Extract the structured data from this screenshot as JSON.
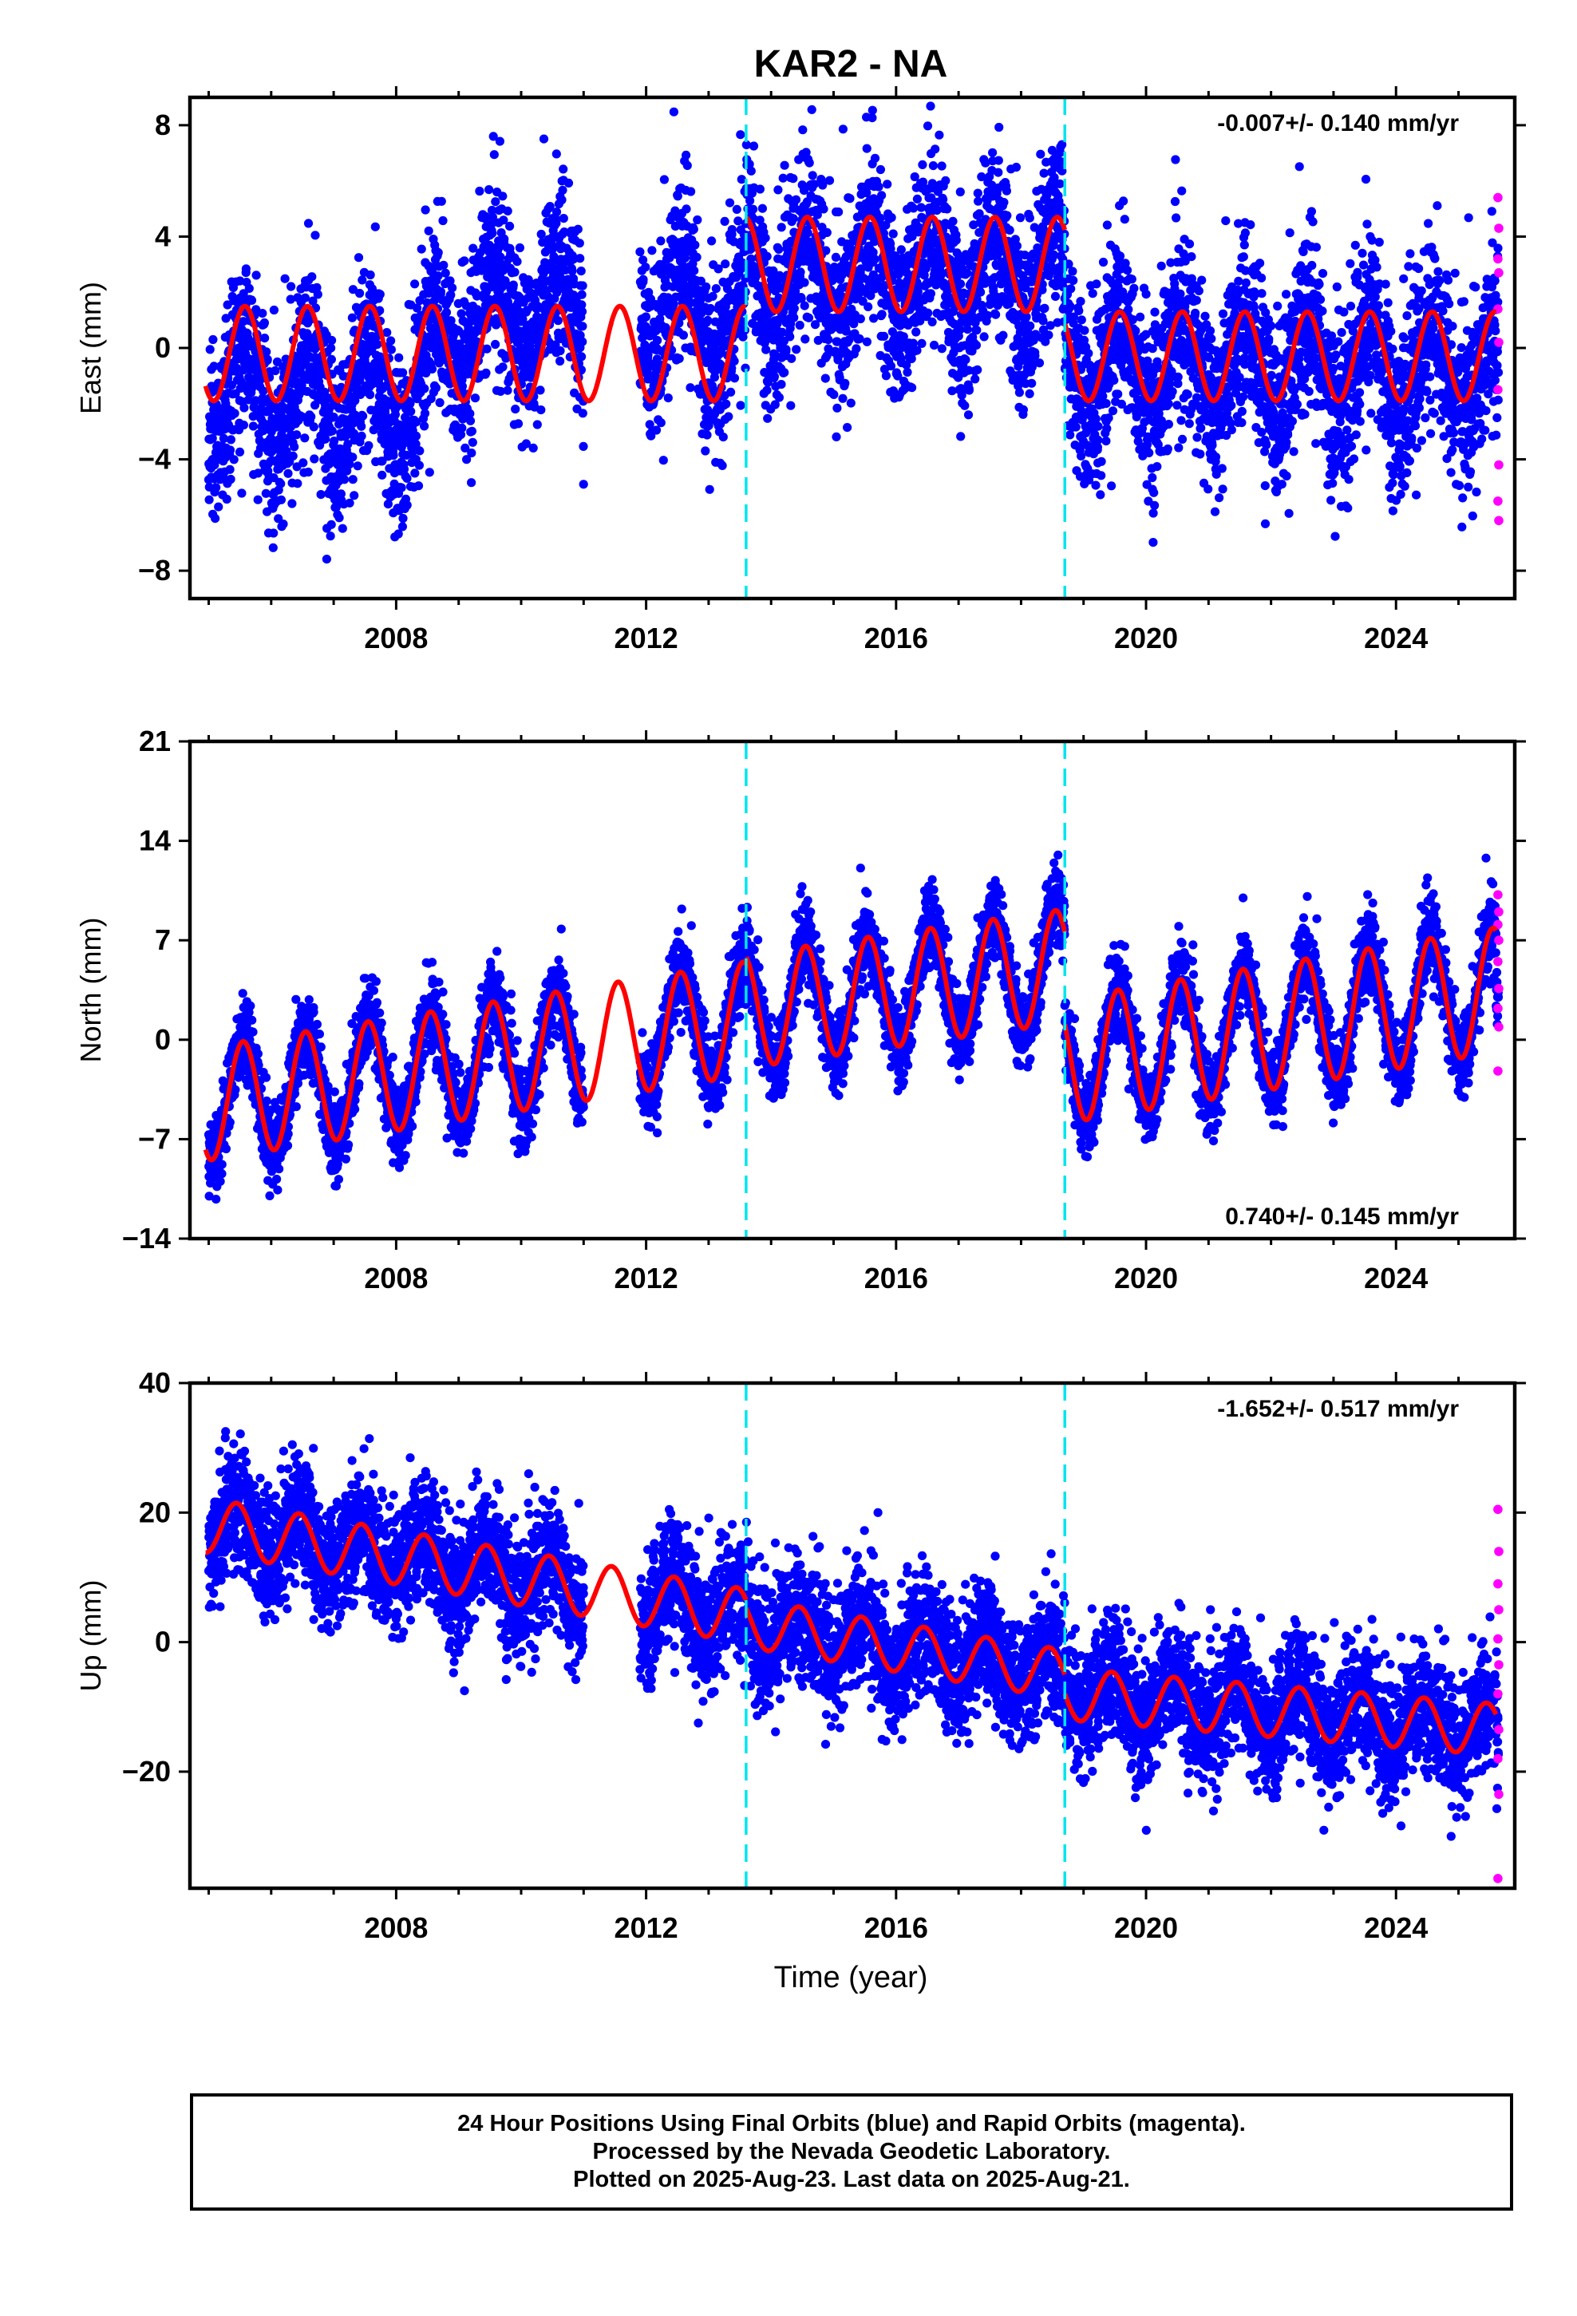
{
  "title": "KAR2 - NA",
  "xlabel": "Time (year)",
  "colors": {
    "final": "#0000ff",
    "rapid": "#ff00ff",
    "model": "#ff0000",
    "steps": "#00e5ee"
  },
  "footer": [
    "24 Hour Positions Using Final Orbits (blue) and Rapid Orbits (magenta).",
    "Processed by the Nevada Geodetic Laboratory.",
    "Plotted on 2025-Aug-23. Last data on 2025-Aug-21."
  ],
  "chart_data": [
    {
      "type": "scatter",
      "ylabel": "East (mm)",
      "rate_text": "-0.007+/- 0.140 mm/yr",
      "xlim": [
        2004.7,
        2025.9
      ],
      "ylim": [
        -9,
        9
      ],
      "xticks": [
        2008,
        2012,
        2016,
        2020,
        2024
      ],
      "yticks": [
        -8,
        -4,
        0,
        4,
        8
      ],
      "steps": [
        2013.6,
        2018.7
      ],
      "data_start": 2005.0,
      "data_end": 2025.64,
      "gaps": [
        [
          2011.0,
          2011.9
        ]
      ],
      "segments": [
        {
          "x": [
            2005.0,
            2008.0,
            2009.2,
            2010.8,
            2012.0,
            2013.6
          ],
          "y": [
            -1.5,
            -2.2,
            1.2,
            1.5,
            1.5,
            0.8
          ]
        },
        {
          "x": [
            2013.6,
            2016.0,
            2018.7
          ],
          "y": [
            2.6,
            2.5,
            2.6
          ]
        },
        {
          "x": [
            2018.7,
            2021.0,
            2025.6
          ],
          "y": [
            -0.6,
            -0.6,
            -0.8
          ]
        }
      ],
      "model_segments": [
        {
          "x0": 2004.95,
          "x1": 2013.6,
          "base": -0.2,
          "amp": 1.7
        },
        {
          "x0": 2013.6,
          "x1": 2018.7,
          "base": 3.0,
          "amp": 1.7
        },
        {
          "x0": 2018.7,
          "x1": 2025.6,
          "base": -0.3,
          "amp": 1.6
        }
      ],
      "phase": 0.58,
      "noise": 1.6,
      "rapid": [
        5.4,
        4.3,
        3.2,
        2.7,
        1.4,
        0.2,
        -1.5,
        -4.2,
        -5.5,
        -6.2
      ]
    },
    {
      "type": "scatter",
      "ylabel": "North (mm)",
      "rate_text": "0.740+/- 0.145 mm/yr",
      "xlim": [
        2004.7,
        2025.9
      ],
      "ylim": [
        -14,
        21
      ],
      "xticks": [
        2008,
        2012,
        2016,
        2020,
        2024
      ],
      "yticks": [
        -14,
        -7,
        0,
        7,
        14,
        21
      ],
      "steps": [
        2013.6,
        2018.7
      ],
      "data_start": 2005.0,
      "data_end": 2025.64,
      "gaps": [
        [
          2011.0,
          2011.9
        ]
      ],
      "segments": [
        {
          "x": [
            2005.0,
            2013.6
          ],
          "y": [
            -4.5,
            1.5
          ]
        },
        {
          "x": [
            2013.6,
            2018.7
          ],
          "y": [
            2.0,
            5.2
          ]
        },
        {
          "x": [
            2018.7,
            2025.6
          ],
          "y": [
            -1.5,
            3.5
          ]
        }
      ],
      "model_segments": [
        {
          "x0": 2004.95,
          "x1": 2013.6,
          "base": 0.0,
          "amp": 4.0
        },
        {
          "x0": 2013.6,
          "x1": 2018.7,
          "base": 0.0,
          "amp": 4.0
        },
        {
          "x0": 2018.7,
          "x1": 2025.6,
          "base": 0.0,
          "amp": 4.4
        }
      ],
      "phase": 0.55,
      "noise": 1.4,
      "rapid": [
        10.2,
        9.0,
        8.1,
        7.0,
        5.5,
        3.6,
        2.2,
        0.9,
        -2.2
      ]
    },
    {
      "type": "scatter",
      "ylabel": "Up (mm)",
      "rate_text": "-1.652+/- 0.517 mm/yr",
      "xlim": [
        2004.7,
        2025.9
      ],
      "ylim": [
        -38,
        40
      ],
      "xticks": [
        2008,
        2012,
        2016,
        2020,
        2024
      ],
      "yticks": [
        -20,
        0,
        20,
        40
      ],
      "steps": [
        2013.6,
        2018.7
      ],
      "data_start": 2005.0,
      "data_end": 2025.64,
      "gaps": [
        [
          2011.0,
          2011.9
        ]
      ],
      "segments": [
        {
          "x": [
            2005.0,
            2013.6
          ],
          "y": [
            18.0,
            4.0
          ]
        },
        {
          "x": [
            2013.6,
            2018.7
          ],
          "y": [
            3.0,
            -5.0
          ]
        },
        {
          "x": [
            2018.7,
            2025.6
          ],
          "y": [
            -8.0,
            -13.5
          ]
        }
      ],
      "model_segments": [
        {
          "x0": 2004.95,
          "x1": 2013.6,
          "base": 0.0,
          "amp": 4.2
        },
        {
          "x0": 2013.6,
          "x1": 2018.7,
          "base": 0.0,
          "amp": 3.8
        },
        {
          "x0": 2018.7,
          "x1": 2025.6,
          "base": 0.0,
          "amp": 4.0
        }
      ],
      "phase": 0.45,
      "noise": 4.8,
      "rapid": [
        20.5,
        14.0,
        9.0,
        5.0,
        0.5,
        -3.5,
        -8.0,
        -13.5,
        -18.0,
        -23.5,
        -36.5
      ]
    }
  ]
}
